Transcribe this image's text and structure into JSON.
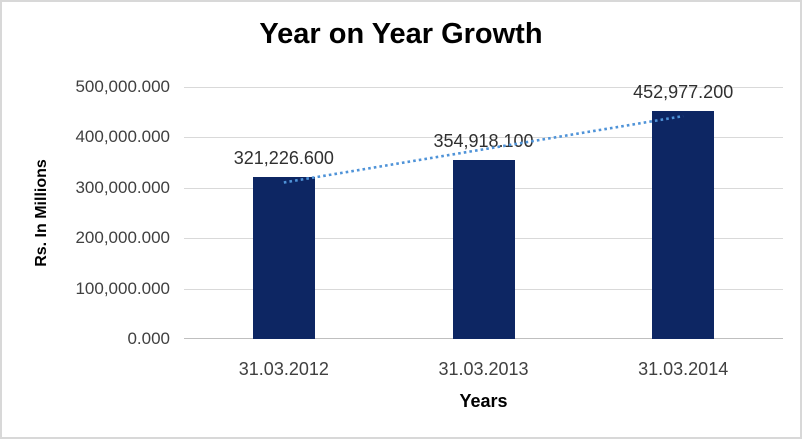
{
  "chart_data": {
    "type": "bar",
    "title": "Year on Year Growth",
    "xlabel": "Years",
    "ylabel": "Rs. In Millions",
    "categories": [
      "31.03.2012",
      "31.03.2013",
      "31.03.2014"
    ],
    "values": [
      321226.6,
      354918.1,
      452977.2
    ],
    "data_labels": [
      "321,226.600",
      "354,918.100",
      "452,977.200"
    ],
    "ylim": [
      0,
      500000
    ],
    "ytick_interval": 100000,
    "ytick_labels_top_to_bottom": [
      "500,000.000",
      "400,000.000",
      "300,000.000",
      "200,000.000",
      "100,000.000",
      "0.000"
    ],
    "grid": true,
    "legend": false,
    "trendline": {
      "type": "linear",
      "style": "dotted"
    },
    "colors": {
      "bar": "#0d2663",
      "trendline": "#4f93d8",
      "gridline": "#d9d9d9",
      "axis_line": "#bfbfbf",
      "chart_border": "#d8d8d8",
      "title_text": "#000000",
      "label_text": "#404040"
    }
  }
}
